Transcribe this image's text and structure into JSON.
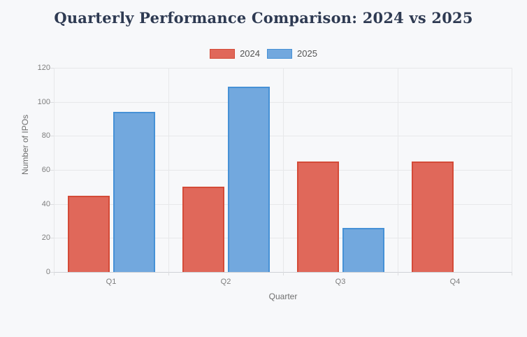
{
  "page": {
    "background": "#f7f8fa",
    "title_color": "#2e3a52"
  },
  "chart_data": {
    "type": "bar",
    "title": "Quarterly Performance Comparison: 2024 vs 2025",
    "categories": [
      "Q1",
      "Q2",
      "Q3",
      "Q4"
    ],
    "series": [
      {
        "name": "2024",
        "values": [
          45,
          50,
          65,
          65
        ],
        "fill": "#e0685a",
        "border": "#d44b38"
      },
      {
        "name": "2025",
        "values": [
          94,
          109,
          26,
          0
        ],
        "fill": "#72a8de",
        "border": "#4691d6"
      }
    ],
    "xlabel": "Quarter",
    "ylabel": "Number of IPOs",
    "ylim": [
      0,
      120
    ],
    "ytick_step": 20,
    "yticks": [
      0,
      20,
      40,
      60,
      80,
      100,
      120
    ],
    "legend_position": "top",
    "grid": true
  }
}
